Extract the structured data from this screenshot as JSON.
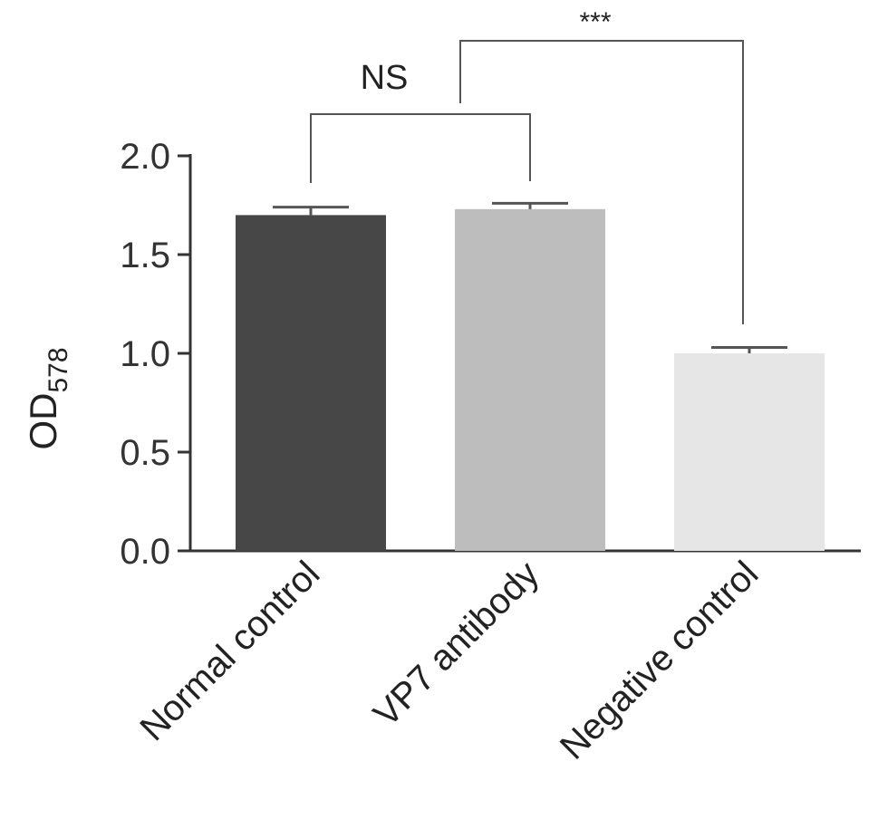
{
  "chart_data": {
    "type": "bar",
    "categories": [
      "Normal control",
      "VP7 antibody",
      "Negative control"
    ],
    "values": [
      1.7,
      1.73,
      1.0
    ],
    "errors": [
      0.04,
      0.03,
      0.03
    ],
    "colors": [
      "#474747",
      "#bdbdbd",
      "#e6e6e6"
    ],
    "ylabel": "OD",
    "ylabel_subscript": "578",
    "ylim": [
      0.0,
      2.0
    ],
    "yticks": [
      "0.0",
      "0.5",
      "1.0",
      "1.5",
      "2.0"
    ],
    "ytick_values": [
      0.0,
      0.5,
      1.0,
      1.5,
      2.0
    ],
    "grid": false,
    "annotations": [
      {
        "label": "NS",
        "between": [
          "Normal control",
          "VP7 antibody"
        ]
      },
      {
        "label": "***",
        "between": [
          "NS",
          "Negative control"
        ]
      }
    ]
  }
}
